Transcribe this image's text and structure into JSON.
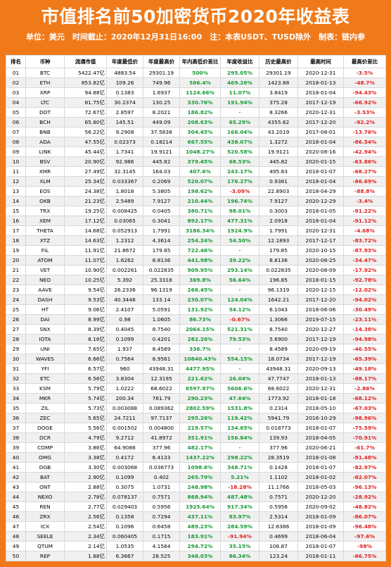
{
  "header": {
    "title": "市值排名前50加密货币2020年收益表",
    "subtitle": "单位：美元　时间截止：2020年12月31日16:00　注：本表USDT、TUSD除外　制表：链内参"
  },
  "table": {
    "columns": [
      "排名",
      "币种",
      "流通市值",
      "年度最低价",
      "年度最高价",
      "年内高低价差比",
      "年度收益比",
      "历史最高价",
      "最高时间",
      "最高价差比"
    ],
    "rows": [
      [
        "01",
        "BTC",
        "5422.47亿",
        "4883.54",
        "29301.19",
        "500%",
        "295.05%",
        "29301.19",
        "2020-12-31",
        "-3.5%"
      ],
      [
        "02",
        "ETH",
        "853.82亿",
        "109.26",
        "749.96",
        "586.4%",
        "469.26%",
        "1423.88",
        "2018-01-13",
        "-48.7%"
      ],
      [
        "03",
        "XRP",
        "94.88亿",
        "0.1383",
        "1.6937",
        "1124.66%",
        "11.07%",
        "3.8419",
        "2018-01-04",
        "-94.43%"
      ],
      [
        "04",
        "LTC",
        "81.75亿",
        "30.2374",
        "130.25",
        "330.76%",
        "191.94%",
        "375.28",
        "2017-12-19",
        "-66.92%"
      ],
      [
        "05",
        "DOT",
        "72.67亿",
        "2.8597",
        "8.2021",
        "186.82%",
        "-",
        "8.3266",
        "2020-12-31",
        "-3.53%"
      ],
      [
        "06",
        "BCH",
        "65.80亿",
        "145.51",
        "449.09",
        "208.63%",
        "65.29%",
        "4355.62",
        "2017-12-20",
        "-92.2%"
      ],
      [
        "07",
        "BNB",
        "56.22亿",
        "9.2908",
        "37.5838",
        "304.45%",
        "166.04%",
        "43.2019",
        "2017-08-01",
        "-13.76%"
      ],
      [
        "08",
        "ADA",
        "47.55亿",
        "0.02373",
        "0.18214",
        "667.55%",
        "438.07%",
        "1.3272",
        "2018-01-04",
        "-86.54%"
      ],
      [
        "09",
        "LINK",
        "45.44亿",
        "1.7341",
        "19.9121",
        "1048.27%",
        "520.58%",
        "19.9121",
        "2020-08-16",
        "-42.94%"
      ],
      [
        "10",
        "BSV",
        "20.90亿",
        "92.986",
        "445.82",
        "379.45%",
        "68.53%",
        "445.82",
        "2020-01-15",
        "-63.86%"
      ],
      [
        "11",
        "XMR",
        "27.49亿",
        "32.3145",
        "164.03",
        "407.6%",
        "243.17%",
        "495.83",
        "2018-01-07",
        "-68.27%"
      ],
      [
        "12",
        "XLM",
        "25.34亿",
        "0.033367",
        "0.2069",
        "520.07%",
        "176.27%",
        "0.9381",
        "2018-01-04",
        "-86.69%"
      ],
      [
        "13",
        "EOS",
        "24.38亿",
        "1.8018",
        "5.3805",
        "198.62%",
        "-3.09%",
        "22.8903",
        "2018-04-29",
        "-88.8%"
      ],
      [
        "14",
        "OKB",
        "21.23亿",
        "2.5489",
        "7.9127",
        "210.44%",
        "196.74%",
        "7.9127",
        "2020-12-29",
        "-3.4%"
      ],
      [
        "15",
        "TRX",
        "19.25亿",
        "0.008425",
        "0.0405",
        "380.71%",
        "98.01%",
        "0.3003",
        "2018-01-05",
        "-91.22%"
      ],
      [
        "16",
        "XEM",
        "17.12亿",
        "0.03065",
        "0.3041",
        "892.17%",
        "477.31%",
        "2.0918",
        "2018-01-04",
        "-91.12%"
      ],
      [
        "17",
        "THETA",
        "14.68亿",
        "0.052913",
        "1.7991",
        "3186.34%",
        "1924.9%",
        "1.7991",
        "2020-12-31",
        "-4.68%"
      ],
      [
        "18",
        "XTZ",
        "14.63亿",
        "1.2312",
        "4.3614",
        "254.24%",
        "54.50%",
        "12.1893",
        "2017-12-17",
        "-83.72%"
      ],
      [
        "19",
        "FIL",
        "11.91亿",
        "21.8672",
        "179.85",
        "722.46%",
        "-",
        "179.85",
        "2020-10-15",
        "-87.93%"
      ],
      [
        "20",
        "ATOM",
        "11.07亿",
        "1.6262",
        "8.8136",
        "441.98%",
        "39.22%",
        "8.8136",
        "2020-08-25",
        "-34.47%"
      ],
      [
        "21",
        "VET",
        "10.90亿",
        "0.002261",
        "0.022835",
        "909.95%",
        "293.14%",
        "0.022835",
        "2020-08-09",
        "-17.92%"
      ],
      [
        "22",
        "NEO",
        "10.25亿",
        "5.392",
        "25.3318",
        "369.8%",
        "56.64%",
        "196.85",
        "2018-01-15",
        "-92.78%"
      ],
      [
        "23",
        "AAVE",
        "9.54亿",
        "26.2336",
        "96.1319",
        "266.45%",
        "-",
        "96.1319",
        "2020-12-15",
        "-12.02%"
      ],
      [
        "24",
        "DASH",
        "9.53亿",
        "40.3446",
        "133.14",
        "230.07%",
        "124.04%",
        "1642.21",
        "2017-12-20",
        "-94.02%"
      ],
      [
        "25",
        "HT",
        "9.06亿",
        "2.4107",
        "5.0591",
        "131.92%",
        "54.12%",
        "6.1043",
        "2018-06-06",
        "-30.49%"
      ],
      [
        "26",
        "DAI",
        "8.99亿",
        "0.98",
        "1.0605",
        "86.73%",
        "-0.67%",
        "1.3066",
        "2019-07-15",
        "-23.11%"
      ],
      [
        "27",
        "SNX",
        "8.39亿",
        "0.4045",
        "8.7540",
        "2064.15%",
        "521.31%",
        "8.7540",
        "2020-12-27",
        "-14.38%"
      ],
      [
        "28",
        "IOTA",
        "8.16亿",
        "0.1099",
        "0.4201",
        "282.26%",
        "79.53%",
        "5.6900",
        "2017-12-19",
        "-94.98%"
      ],
      [
        "29",
        "UNI",
        "7.65亿",
        "1.937",
        "8.4589",
        "336.7%",
        "-",
        "8.4589",
        "2020-09-19",
        "-46.55%"
      ],
      [
        "30",
        "WAVES",
        "6.66亿",
        "0.7564",
        "8.9561",
        "10840.43%",
        "554.15%",
        "18.0734",
        "2017-12-19",
        "-65.39%"
      ],
      [
        "31",
        "YFI",
        "6.57亿",
        "960",
        "43948.31",
        "4477.95%",
        "-",
        "43948.31",
        "2020-09-13",
        "-49.18%"
      ],
      [
        "32",
        "ETC",
        "6.56亿",
        "3.8304",
        "12.3195",
        "221.62%",
        "26.04%",
        "47.7747",
        "2018-01-13",
        "-88.17%"
      ],
      [
        "33",
        "KSM",
        "5.79亿",
        "1.0222",
        "68.6022",
        "6597.97%",
        "5606.6%",
        "68.6022",
        "2020-12-31",
        "-2.86%"
      ],
      [
        "34",
        "MKR",
        "5.74亿",
        "200.34",
        "781.79",
        "290.23%",
        "47.64%",
        "1773.92",
        "2018-01-18",
        "-68.12%"
      ],
      [
        "35",
        "ZIL",
        "5.73亿",
        "0.003088",
        "0.089362",
        "2802.59%",
        "1531.8%",
        "0.2314",
        "2018-05-10",
        "-67.03%"
      ],
      [
        "36",
        "ZEC",
        "5.65亿",
        "24.7211",
        "97.7137",
        "295.26%",
        "119.42%",
        "5941.79",
        "2016-10-29",
        "-98.96%"
      ],
      [
        "37",
        "DOGE",
        "5.56亿",
        "0.001502",
        "0.004800",
        "219.57%",
        "134.65%",
        "0.018773",
        "2018-01-07",
        "-75.59%"
      ],
      [
        "38",
        "DCR",
        "4.79亿",
        "9.2712",
        "41.8972",
        "351.91%",
        "156.84%",
        "139.93",
        "2018-04-05",
        "-70.91%"
      ],
      [
        "39",
        "COMP",
        "3.86亿",
        "64.9086",
        "377.96",
        "482.17%",
        "-",
        "377.96",
        "2020-06-21",
        "-61.7%"
      ],
      [
        "40",
        "OMG",
        "3.38亿",
        "0.4172",
        "6.4133",
        "1437.22%",
        "298.22%",
        "28.3519",
        "2018-01-08",
        "-91.48%"
      ],
      [
        "41",
        "DGB",
        "3.30亿",
        "0.003068",
        "0.036773",
        "1098.6%",
        "348.71%",
        "0.1428",
        "2018-01-07",
        "-82.97%"
      ],
      [
        "42",
        "BAT",
        "2.90亿",
        "0.1099",
        "0.402",
        "265.79%",
        "5.21%",
        "1.1102",
        "2018-01-02",
        "-82.07%"
      ],
      [
        "43",
        "ONT",
        "2.88亿",
        "0.3075",
        "1.0731",
        "248.98%",
        "-18.28%",
        "11.1766",
        "2018-05-03",
        "-96.13%"
      ],
      [
        "44",
        "NEXO",
        "2.78亿",
        "0.078137",
        "0.7571",
        "868.94%",
        "487.48%",
        "0.7571",
        "2020-12-20",
        "-28.92%"
      ],
      [
        "45",
        "REN",
        "2.77亿",
        "0.029403",
        "0.5956",
        "1925.64%",
        "917.34%",
        "0.5956",
        "2020-09-02",
        "-48.82%"
      ],
      [
        "46",
        "ZRX",
        "2.56亿",
        "0.1358",
        "0.7294",
        "437.11%",
        "83.97%",
        "2.5314",
        "2018-01-09",
        "-86.07%"
      ],
      [
        "47",
        "ICX",
        "2.54亿",
        "0.1096",
        "0.6458",
        "489.23%",
        "284.59%",
        "12.6386",
        "2018-01-09",
        "-96.48%"
      ],
      [
        "48",
        "SEELE",
        "2.34亿",
        "0.060405",
        "0.1715",
        "183.91%",
        "-91.94%",
        "0.4699",
        "2018-06-04",
        "-97.6%"
      ],
      [
        "49",
        "QTUM",
        "2.14亿",
        "1.0535",
        "4.1584",
        "294.72%",
        "35.15%",
        "106.87",
        "2018-01-07",
        "-98%"
      ],
      [
        "50",
        "REP",
        "1.88亿",
        "6.3667",
        "28.525",
        "348.03%",
        "86.34%",
        "123.24",
        "2018-01-11",
        "-86.75%"
      ]
    ]
  }
}
